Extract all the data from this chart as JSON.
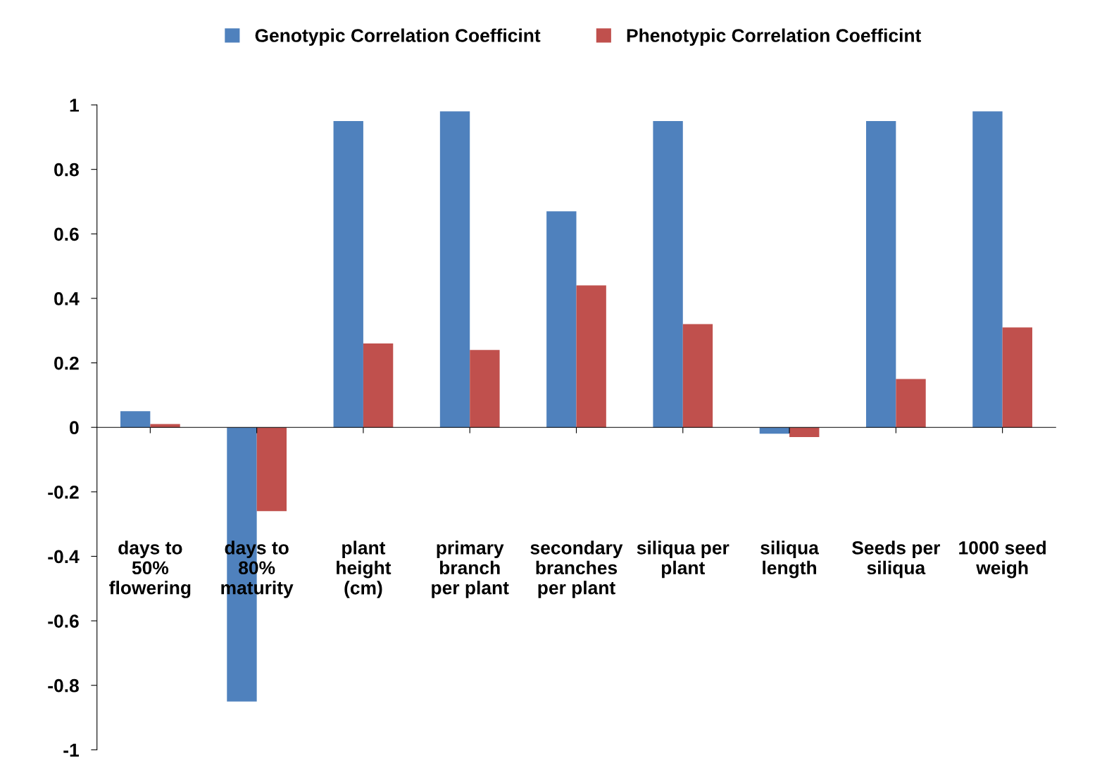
{
  "chart_data": {
    "type": "bar",
    "categories": [
      "days to\n50%\nflowering",
      "days to\n80%\nmaturity",
      "plant\nheight\n(cm)",
      "primary\nbranch\nper plant",
      "secondary\nbranches\nper plant",
      "siliqua per\nplant",
      "siliqua\nlength",
      "Seeds per\nsiliqua",
      "1000 seed\nweigh"
    ],
    "series": [
      {
        "name": "Genotypic Correlation Coefficint",
        "color": "#4f81bd",
        "values": [
          0.05,
          -0.85,
          0.95,
          0.98,
          0.67,
          0.95,
          -0.02,
          0.95,
          0.98
        ]
      },
      {
        "name": "Phenotypic Correlation Coefficint",
        "color": "#c0504d",
        "values": [
          0.01,
          -0.26,
          0.26,
          0.24,
          0.44,
          0.32,
          -0.03,
          0.15,
          0.31
        ]
      }
    ],
    "ylim": [
      -1,
      1
    ],
    "yticks": [
      -1,
      -0.8,
      -0.6,
      -0.4,
      -0.2,
      0,
      0.2,
      0.4,
      0.6,
      0.8,
      1
    ],
    "legend": "top"
  }
}
